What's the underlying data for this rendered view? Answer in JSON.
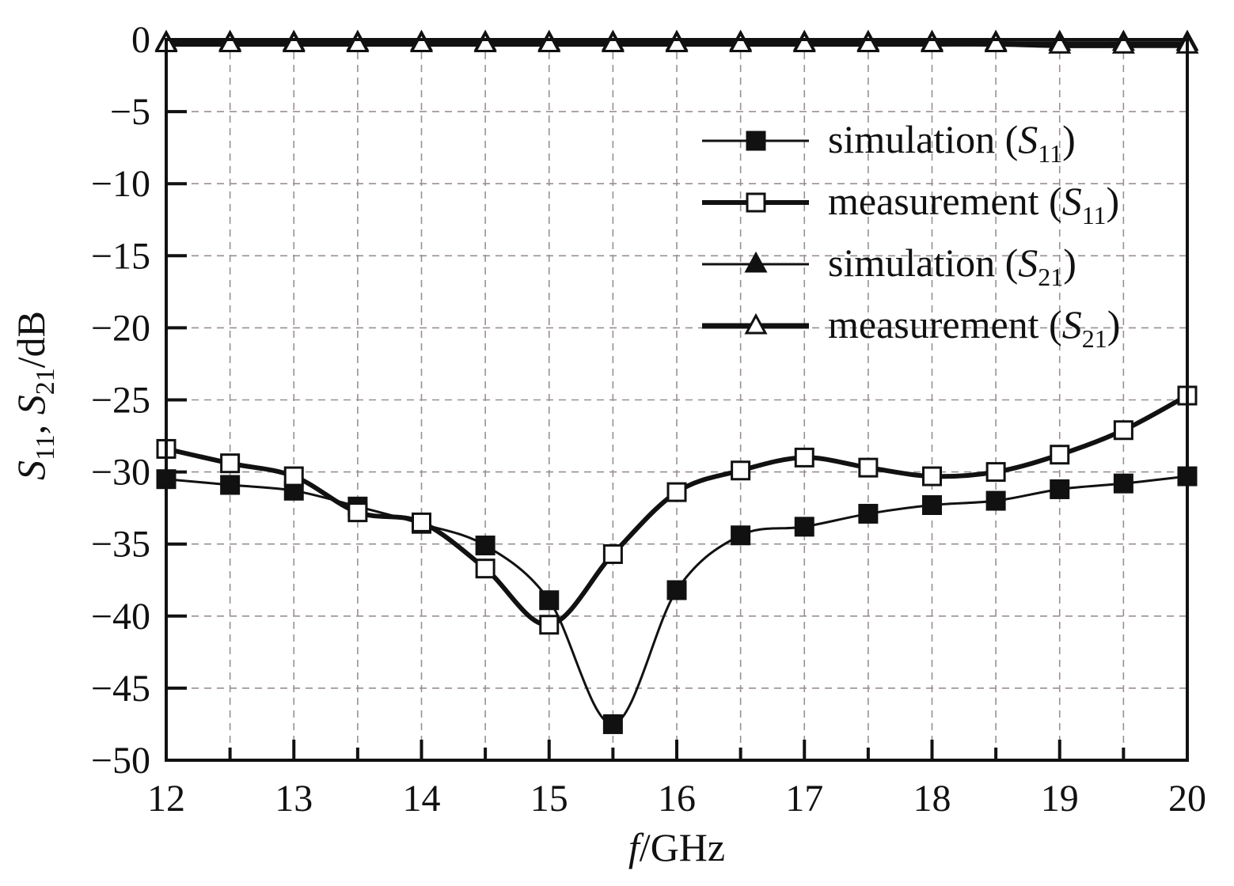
{
  "chart_data": {
    "type": "line",
    "xlabel_italic": "f",
    "xlabel_rest": "/GHz",
    "ylabel": {
      "s": "S",
      "sub1": "11",
      "sep": ", ",
      "s2": "S",
      "sub2": "21",
      "rest": "/dB"
    },
    "xlim": [
      12,
      20
    ],
    "ylim": [
      -50,
      0
    ],
    "x_ticks": [
      "12",
      "13",
      "14",
      "15",
      "16",
      "17",
      "18",
      "19",
      "20"
    ],
    "y_ticks": [
      "0",
      "−5",
      "−10",
      "−15",
      "−20",
      "−25",
      "−30",
      "−35",
      "−40",
      "−45",
      "−50"
    ],
    "grid": true,
    "legend_position": "top-right",
    "x": [
      12,
      12.5,
      13,
      13.5,
      14,
      14.5,
      15,
      15.5,
      16,
      16.5,
      17,
      17.5,
      18,
      18.5,
      19,
      19.5,
      20
    ],
    "series": [
      {
        "name_text": "simulation (",
        "name_symbol": "S",
        "name_sub": "11",
        "name_close": ")",
        "marker": "square-filled",
        "line_weight": "thin",
        "values": [
          -30.5,
          -30.9,
          -31.3,
          -32.4,
          -33.6,
          -35.1,
          -38.9,
          -47.5,
          -38.2,
          -34.4,
          -33.8,
          -32.9,
          -32.3,
          -32.0,
          -31.2,
          -30.8,
          -30.3
        ]
      },
      {
        "name_text": "measurement (",
        "name_symbol": "S",
        "name_sub": "11",
        "name_close": ")",
        "marker": "square-open",
        "line_weight": "thick",
        "values": [
          -28.4,
          -29.4,
          -30.3,
          -32.8,
          -33.5,
          -36.7,
          -40.6,
          -35.7,
          -31.4,
          -29.9,
          -29.0,
          -29.7,
          -30.3,
          -30.0,
          -28.8,
          -27.1,
          -24.7
        ]
      },
      {
        "name_text": "simulation (",
        "name_symbol": "S",
        "name_sub": "21",
        "name_close": ")",
        "marker": "triangle-filled",
        "line_weight": "thin",
        "values": [
          -0.2,
          -0.2,
          -0.2,
          -0.2,
          -0.2,
          -0.2,
          -0.2,
          -0.2,
          -0.2,
          -0.2,
          -0.2,
          -0.2,
          -0.2,
          -0.2,
          -0.2,
          -0.2,
          -0.2
        ]
      },
      {
        "name_text": "measurement (",
        "name_symbol": "S",
        "name_sub": "21",
        "name_close": ")",
        "marker": "triangle-open",
        "line_weight": "thickest",
        "values": [
          -0.3,
          -0.3,
          -0.3,
          -0.3,
          -0.3,
          -0.3,
          -0.3,
          -0.3,
          -0.3,
          -0.3,
          -0.3,
          -0.3,
          -0.3,
          -0.3,
          -0.4,
          -0.4,
          -0.4
        ]
      }
    ]
  }
}
